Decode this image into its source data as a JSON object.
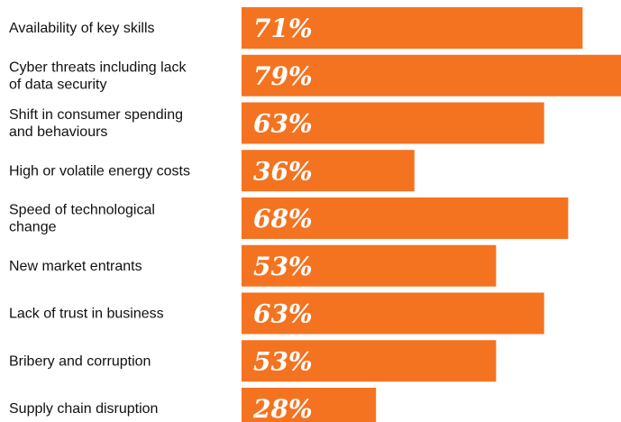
{
  "chart_data": {
    "type": "bar",
    "orientation": "horizontal",
    "categories": [
      [
        "Availability of key skills"
      ],
      [
        "Cyber threats including lack",
        "of data security"
      ],
      [
        "Shift in consumer spending",
        "and behaviours"
      ],
      [
        "High or volatile energy costs"
      ],
      [
        "Speed of technological",
        "change"
      ],
      [
        "New market entrants"
      ],
      [
        "Lack of trust in business"
      ],
      [
        "Bribery and corruption"
      ],
      [
        "Supply chain disruption"
      ]
    ],
    "values": [
      71,
      79,
      63,
      36,
      68,
      53,
      63,
      53,
      28
    ],
    "value_labels": [
      "71%",
      "79%",
      "63%",
      "36%",
      "68%",
      "53%",
      "63%",
      "53%",
      "28%"
    ],
    "xlim": [
      0,
      79
    ],
    "bar_color": "#f47321",
    "title": "",
    "xlabel": "",
    "ylabel": ""
  }
}
